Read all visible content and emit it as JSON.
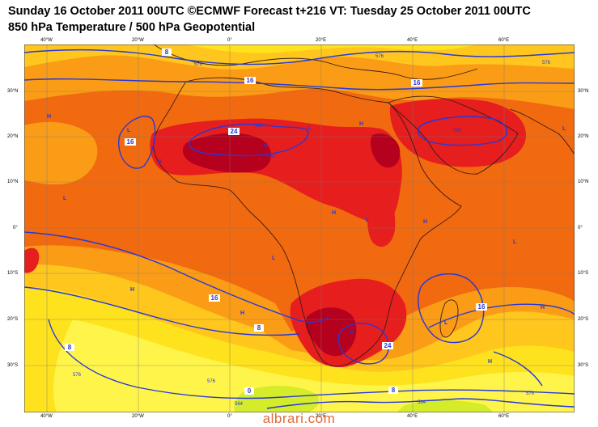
{
  "header": {
    "line1": "Sunday 16 October 2011 00UTC ©ECMWF Forecast t+216 VT: Tuesday 25 October 2011 00UTC",
    "line2": "850 hPa Temperature / 500 hPa Geopotential"
  },
  "axes": {
    "lon_top": [
      "40°W",
      "20°W",
      "0°",
      "20°E",
      "40°E",
      "60°E"
    ],
    "lon_bottom": [
      "40°W",
      "20°W",
      "0°",
      "20°E",
      "40°E",
      "60°E"
    ],
    "lat_left": [
      "30°N",
      "20°N",
      "10°N",
      "0°",
      "10°S",
      "20°S",
      "30°S"
    ],
    "lat_right": [
      "30°N",
      "20°N",
      "10°N",
      "0°",
      "10°S",
      "20°S",
      "30°S"
    ]
  },
  "contour_labels": {
    "temperature": [
      "8",
      "16",
      "16",
      "24",
      "16",
      "16",
      "8",
      "8",
      "16",
      "24",
      "8",
      "0"
    ],
    "geopotential": [
      "576",
      "576",
      "576",
      "588",
      "588",
      "588",
      "576",
      "576",
      "576",
      "564",
      "564"
    ]
  },
  "pressure_centres": {
    "highs": [
      "H",
      "H",
      "H",
      "H",
      "H",
      "H",
      "H",
      "H",
      "H",
      "H",
      "H"
    ],
    "lows": [
      "L",
      "L",
      "L",
      "L",
      "L",
      "L",
      "L",
      "L"
    ]
  },
  "colors": {
    "very_hot": "#b5001e",
    "hot": "#e61e1e",
    "warm": "#f26a10",
    "mild": "#fb9c16",
    "cool": "#ffc61e",
    "cooler": "#ffe21e",
    "cold": "#fff54a",
    "cold_green": "#d4ec2a",
    "contour": "#2838d8",
    "coast": "#3a1c18"
  },
  "watermark": "albrari.com"
}
